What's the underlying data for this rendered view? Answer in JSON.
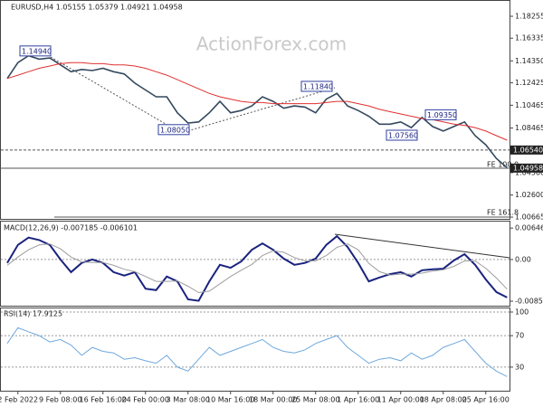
{
  "chart_data": [
    {
      "type": "line",
      "title": "EURUSD,H4  1.05155 1.05379 1.04921 1.04958",
      "watermark": "ActionForex.com",
      "ylim": [
        1.0043,
        1.1968
      ],
      "yticks": [
        1.18255,
        1.16335,
        {
          "value": 1.1435,
          "label": "1.14350"
        },
        1.12425,
        1.10465,
        1.08465,
        {
          "value": 1.0456,
          "label": "1.04560"
        },
        {
          "value": 1.026,
          "label": "1.02600"
        },
        1.00665
      ],
      "level_labels": [
        {
          "value": 1.0654,
          "label": "1.06540"
        },
        1.04958
      ],
      "annotations": [
        {
          "value": 1.1494,
          "label": "1.14940"
        },
        {
          "value": 1.0805,
          "label": "1.08050"
        },
        {
          "value": 1.1184,
          "label": "1.11840"
        },
        {
          "value": 1.0756,
          "label": "1.07560"
        },
        {
          "value": 1.0935,
          "label": "1.09350"
        }
      ],
      "fe_labels": [
        "FE 100.0",
        "FE 161.8"
      ],
      "series": [
        {
          "name": "EURUSD",
          "color": "#34495e",
          "values": [
            1.128,
            1.142,
            1.148,
            1.145,
            1.146,
            1.14,
            1.134,
            1.136,
            1.135,
            1.137,
            1.134,
            1.132,
            1.124,
            1.118,
            1.112,
            1.112,
            1.098,
            1.089,
            1.09,
            1.098,
            1.108,
            1.098,
            1.1,
            1.104,
            1.112,
            1.108,
            1.102,
            1.104,
            1.103,
            1.098,
            1.11,
            1.115,
            1.104,
            1.1,
            1.095,
            1.088,
            1.088,
            1.09,
            1.085,
            1.094,
            1.086,
            1.082,
            1.086,
            1.09,
            1.078,
            1.07,
            1.058,
            1.05
          ]
        },
        {
          "name": "MA",
          "color": "#e03030",
          "values": [
            1.128,
            1.131,
            1.134,
            1.137,
            1.139,
            1.141,
            1.142,
            1.142,
            1.141,
            1.141,
            1.14,
            1.14,
            1.139,
            1.137,
            1.134,
            1.131,
            1.127,
            1.123,
            1.119,
            1.115,
            1.112,
            1.11,
            1.108,
            1.107,
            1.107,
            1.106,
            1.106,
            1.106,
            1.106,
            1.106,
            1.107,
            1.108,
            1.108,
            1.106,
            1.104,
            1.101,
            1.099,
            1.097,
            1.095,
            1.093,
            1.092,
            1.09,
            1.088,
            1.087,
            1.085,
            1.082,
            1.078,
            1.074
          ]
        }
      ]
    },
    {
      "type": "line",
      "title": "MACD(12,26,9) -0.007185 -0.006101",
      "ylim": [
        -0.0095,
        0.0078
      ],
      "yticks": [
        0.006468,
        {
          "value": 0,
          "label": "0.00"
        },
        -0.008573
      ],
      "series": [
        {
          "name": "MACD",
          "color": "#1a237e",
          "values": [
            -0.0007,
            0.003,
            0.0045,
            0.004,
            0.003,
            0,
            -0.0026,
            -0.0007,
            0,
            -0.0007,
            -0.0026,
            -0.0033,
            -0.0026,
            -0.006,
            -0.0063,
            -0.0035,
            -0.0045,
            -0.0082,
            -0.0085,
            -0.0045,
            -0.0011,
            -0.0017,
            -0.0004,
            0.002,
            0.0033,
            0.002,
            0.0002,
            -0.0011,
            -0.0007,
            0.0002,
            0.003,
            0.0048,
            0.0026,
            -0.0007,
            -0.0045,
            -0.0037,
            -0.003,
            -0.0026,
            -0.0035,
            -0.0022,
            -0.002,
            -0.0019,
            -0.0002,
            0.0011,
            -0.0011,
            -0.0041,
            -0.0067,
            -0.0078
          ]
        },
        {
          "name": "Signal",
          "color": "#9e9e9e",
          "values": [
            -0.0012,
            0.0005,
            0.002,
            0.003,
            0.0032,
            0.0022,
            0.0005,
            -0.0005,
            -0.0006,
            -0.0006,
            -0.0012,
            -0.002,
            -0.0025,
            -0.0035,
            -0.0045,
            -0.0045,
            -0.0044,
            -0.0055,
            -0.0068,
            -0.0065,
            -0.005,
            -0.0035,
            -0.0022,
            -0.001,
            0.0008,
            0.0018,
            0.0015,
            0.0004,
            -0.0003,
            -0.0003,
            0.0008,
            0.0025,
            0.0032,
            0.002,
            -0.0008,
            -0.0025,
            -0.0032,
            -0.003,
            -0.003,
            -0.0028,
            -0.0024,
            -0.0021,
            -0.0014,
            -0.0003,
            -0.0003,
            -0.0018,
            -0.0038,
            -0.0061
          ]
        }
      ]
    },
    {
      "type": "line",
      "title": "RSI(14) 17.9125",
      "ylim": [
        0,
        100
      ],
      "yticks": [
        100,
        70,
        30
      ],
      "categories": [
        null,
        "2 Feb 2022",
        null,
        null,
        null,
        "9 Feb 08:00",
        null,
        null,
        null,
        "16 Feb 16:00",
        null,
        null,
        null,
        "24 Feb 00:00",
        null,
        null,
        null,
        "3 Mar 08:00",
        null,
        null,
        null,
        "10 Mar 16:00",
        null,
        null,
        null,
        "18 Mar 00:00",
        null,
        null,
        null,
        "25 Mar 08:00",
        null,
        null,
        null,
        "1 Apr 16:00",
        null,
        null,
        null,
        "11 Apr 00:00",
        null,
        null,
        null,
        "18 Apr 08:00",
        null,
        null,
        null,
        "25 Apr 16:00",
        null,
        null
      ],
      "series": [
        {
          "name": "RSI",
          "color": "#6fa8dc",
          "values": [
            60,
            80,
            75,
            70,
            62,
            65,
            58,
            45,
            55,
            50,
            48,
            40,
            42,
            38,
            35,
            45,
            30,
            25,
            40,
            55,
            45,
            50,
            55,
            60,
            65,
            55,
            50,
            48,
            52,
            60,
            65,
            70,
            55,
            45,
            35,
            40,
            42,
            38,
            48,
            40,
            45,
            55,
            60,
            65,
            50,
            35,
            25,
            18
          ]
        }
      ]
    }
  ]
}
